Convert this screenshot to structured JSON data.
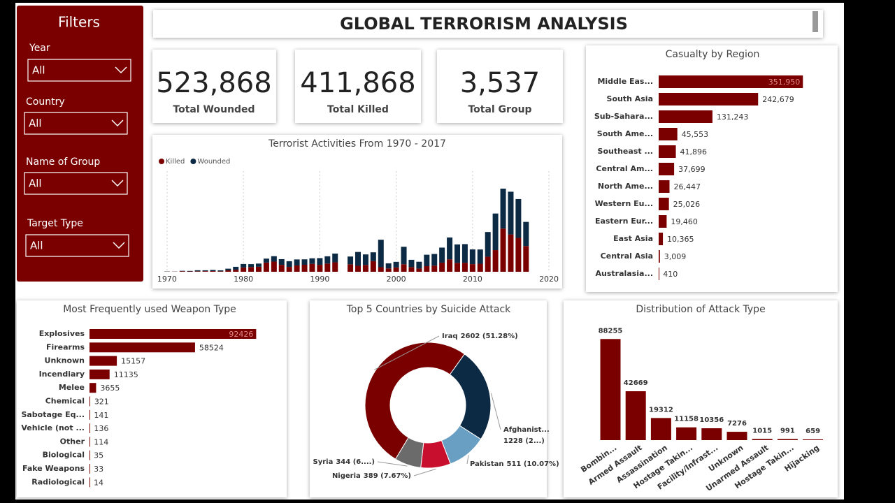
{
  "title": "GLOBAL TERRORISM ANALYSIS",
  "filters": {
    "title": "Filters",
    "items": [
      {
        "label": "Year",
        "value": "All"
      },
      {
        "label": "Country",
        "value": "All"
      },
      {
        "label": "Name of Group",
        "value": "All"
      },
      {
        "label": "Target Type",
        "value": "All"
      }
    ]
  },
  "kpis": [
    {
      "value": "523,868",
      "label": "Total Wounded"
    },
    {
      "value": "411,868",
      "label": "Total Killed"
    },
    {
      "value": "3,537",
      "label": "Total Group"
    }
  ],
  "chart_data": [
    {
      "type": "bar",
      "stacked": true,
      "title": "Terrorist Activities From 1970 - 2017",
      "x": [
        1970,
        1971,
        1972,
        1973,
        1974,
        1975,
        1976,
        1977,
        1978,
        1979,
        1980,
        1981,
        1982,
        1983,
        1984,
        1985,
        1986,
        1987,
        1988,
        1989,
        1990,
        1991,
        1992,
        1994,
        1995,
        1996,
        1997,
        1998,
        1999,
        2000,
        2001,
        2002,
        2003,
        2004,
        2005,
        2006,
        2007,
        2008,
        2009,
        2010,
        2011,
        2012,
        2013,
        2014,
        2015,
        2016,
        2017
      ],
      "series": [
        {
          "name": "Killed",
          "color": "#7a0000",
          "values": [
            170,
            170,
            570,
            370,
            540,
            620,
            680,
            460,
            1460,
            2100,
            4400,
            4850,
            5130,
            9440,
            10450,
            7100,
            4980,
            6480,
            7190,
            8150,
            7150,
            8430,
            9740,
            7690,
            6100,
            6960,
            10920,
            4690,
            3390,
            4400,
            7730,
            4800,
            3300,
            5740,
            6330,
            9380,
            12820,
            9160,
            9270,
            7830,
            8250,
            15500,
            22270,
            44490,
            38430,
            34870,
            26450
          ]
        },
        {
          "name": "Wounded",
          "color": "#0d2a45",
          "values": [
            200,
            80,
            400,
            500,
            1000,
            900,
            1200,
            1000,
            1700,
            3000,
            3600,
            3000,
            3300,
            4100,
            5600,
            5900,
            5900,
            6200,
            5600,
            5700,
            6900,
            7500,
            9000,
            8000,
            14300,
            10900,
            9100,
            28300,
            5300,
            5800,
            18000,
            7500,
            7000,
            11800,
            12000,
            15500,
            22500,
            19000,
            19200,
            15200,
            14700,
            25400,
            37700,
            41100,
            44000,
            40000,
            24900
          ]
        }
      ],
      "xlim": [
        1969,
        2021
      ],
      "xticks": [
        1970,
        1980,
        1990,
        2000,
        2010,
        2020
      ],
      "ylim": [
        0,
        100000
      ],
      "grid": true,
      "legend": "top-left"
    },
    {
      "type": "hbar",
      "title": "Casualty by Region",
      "color": "#7a0000",
      "categories": [
        "Middle Eas...",
        "South Asia",
        "Sub-Sahara...",
        "South Ame...",
        "Southeast ...",
        "Central Am...",
        "North Ame...",
        "Western Eu...",
        "Eastern Eur...",
        "East Asia",
        "Central Asia",
        "Australasia..."
      ],
      "values": [
        351950,
        242679,
        131243,
        45553,
        41896,
        37699,
        26447,
        25026,
        19460,
        10365,
        3009,
        410
      ],
      "value_labels": [
        "351,950",
        "242,679",
        "131,243",
        "45,553",
        "41,896",
        "37,699",
        "26,447",
        "25,026",
        "19,460",
        "10,365",
        "3,009",
        "410"
      ],
      "xlim": [
        0,
        360000
      ]
    },
    {
      "type": "hbar",
      "title": "Most Frequently used Weapon Type",
      "color": "#7a0000",
      "categories": [
        "Explosives",
        "Firearms",
        "Unknown",
        "Incendiary",
        "Melee",
        "Chemical",
        "Sabotage Eq...",
        "Vehicle (not ...",
        "Other",
        "Biological",
        "Fake Weapons",
        "Radiological"
      ],
      "values": [
        92426,
        58524,
        15157,
        11135,
        3655,
        321,
        141,
        136,
        114,
        35,
        33,
        14
      ],
      "xlim": [
        0,
        95000
      ]
    },
    {
      "type": "donut",
      "title": "Top 5 Countries by Suicide Attack",
      "categories": [
        "Iraq",
        "Afghanist...",
        "Pakistan",
        "Nigeria",
        "Syria"
      ],
      "values": [
        2602,
        1228,
        511,
        389,
        344
      ],
      "value_labels": [
        "2602 (51.28%)",
        "1228 (2...)",
        "511 (10.07%)",
        "389 (7.67%)",
        "344 (6....)"
      ],
      "colors": [
        "#7a0000",
        "#0d2a45",
        "#6a9fc4",
        "#c8102e",
        "#6b6b6b"
      ]
    },
    {
      "type": "column",
      "title": "Distribution of Attack Type",
      "color": "#7a0000",
      "categories": [
        "Bombin...",
        "Armed Assault",
        "Assassination",
        "Hostage Takin...",
        "Facility/Infrast...",
        "Unknown",
        "Unarmed Assault",
        "Hostage Takin...",
        "Hijacking"
      ],
      "values": [
        88255,
        42669,
        19312,
        11158,
        10356,
        7276,
        1015,
        991,
        659
      ],
      "ylim": [
        0,
        100000
      ]
    }
  ]
}
